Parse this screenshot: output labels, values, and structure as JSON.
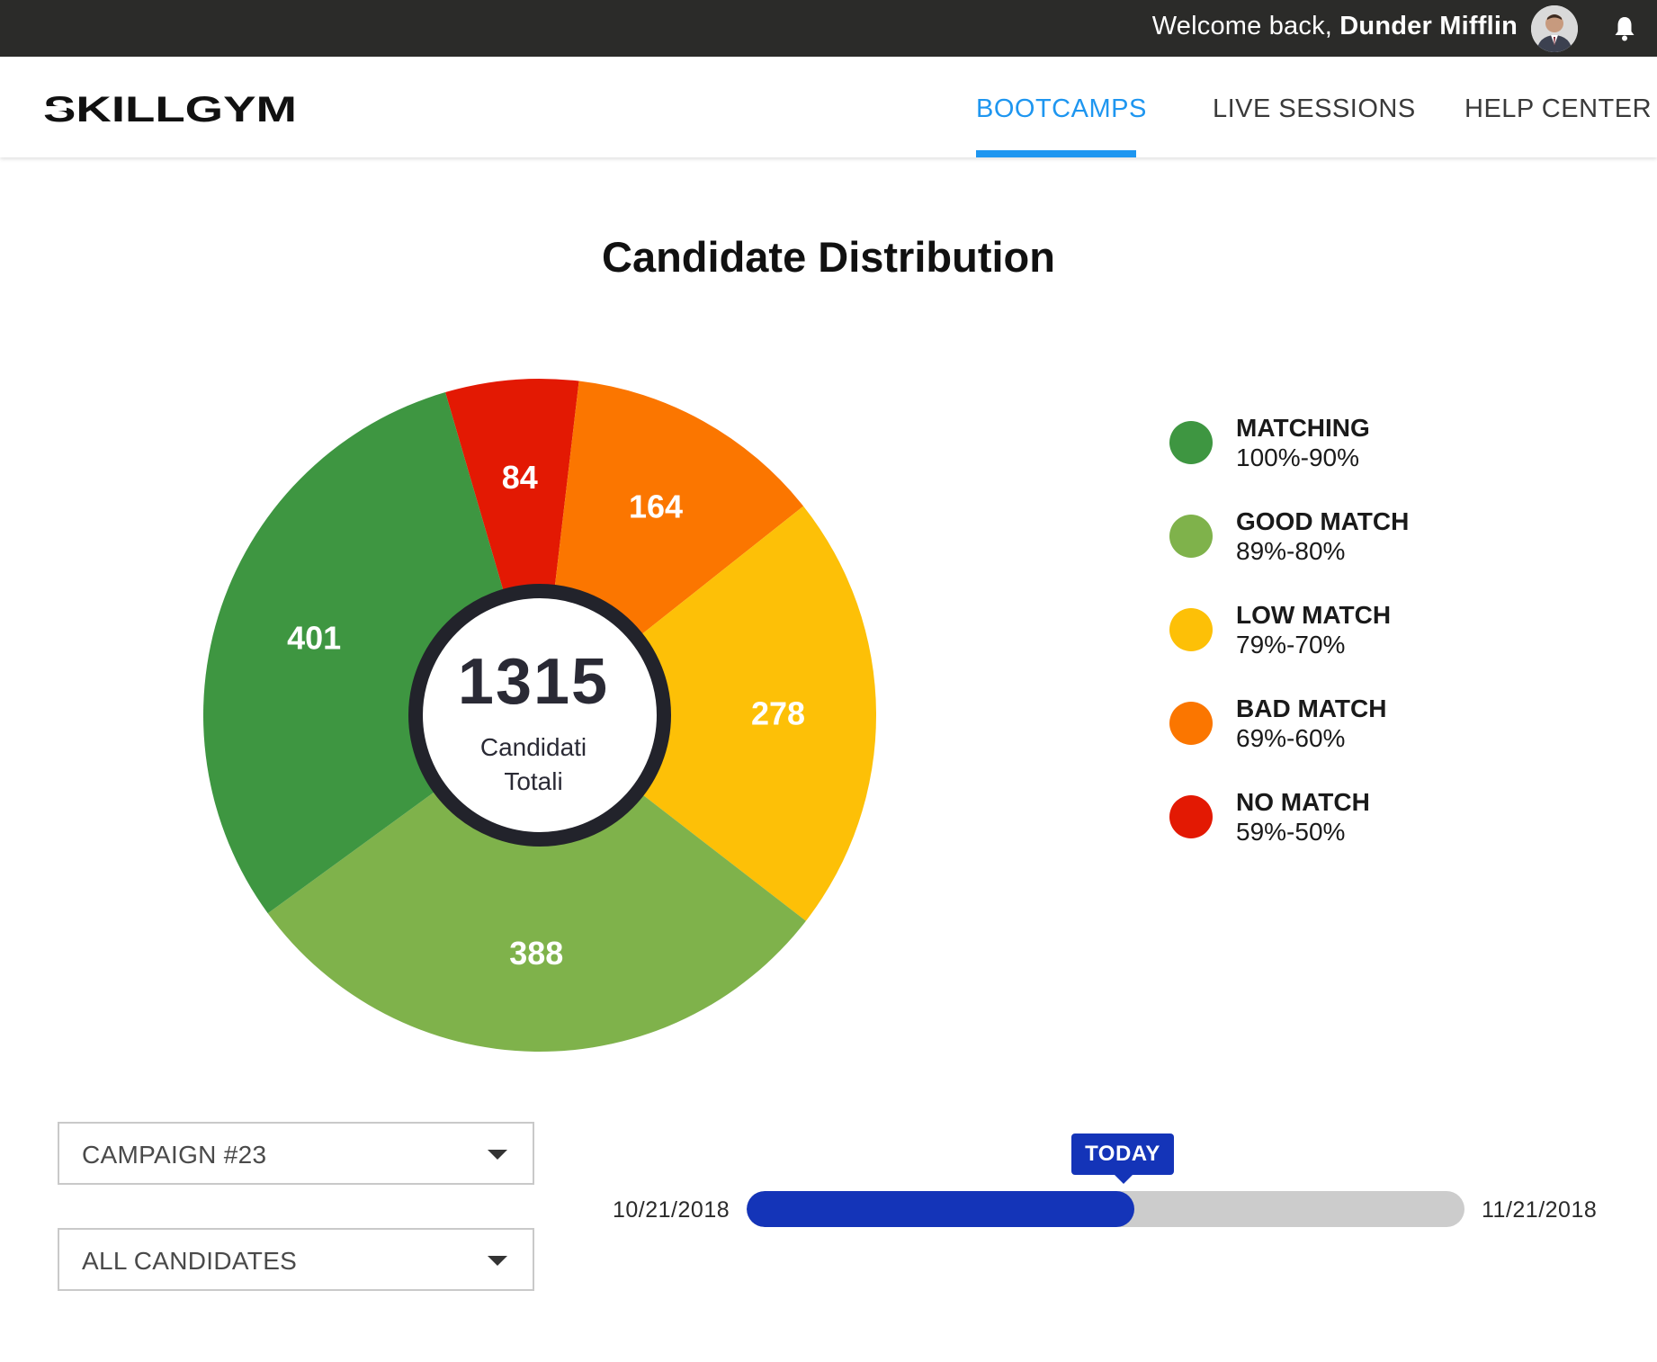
{
  "topbar": {
    "welcome_prefix": "Welcome back, ",
    "user_name": "Dunder Mifflin"
  },
  "header": {
    "logo_text": "SKILLGYM",
    "nav": [
      {
        "label": "BOOTCAMPS",
        "active": true
      },
      {
        "label": "LIVE SESSIONS",
        "active": false
      },
      {
        "label": "HELP CENTER",
        "active": false
      }
    ]
  },
  "page": {
    "title": "Candidate Distribution"
  },
  "chart_data": {
    "type": "pie",
    "title": "Candidate Distribution",
    "center_total": "1315",
    "center_label_line1": "Candidati",
    "center_label_line2": "Totali",
    "slices": [
      {
        "label": "MATCHING",
        "range": "100%-90%",
        "value": 401,
        "color": "#3e9641"
      },
      {
        "label": "GOOD MATCH",
        "range": "89%-80%",
        "value": 388,
        "color": "#7fb24b"
      },
      {
        "label": "LOW MATCH",
        "range": "79%-70%",
        "value": 278,
        "color": "#fdc007"
      },
      {
        "label": "BAD MATCH",
        "range": "69%-60%",
        "value": 164,
        "color": "#fb7600"
      },
      {
        "label": "NO MATCH",
        "range": "59%-50%",
        "value": 84,
        "color": "#e31903"
      }
    ]
  },
  "filters": {
    "campaign": "CAMPAIGN #23",
    "candidates": "ALL CANDIDATES"
  },
  "timeline": {
    "start_date": "10/21/2018",
    "end_date": "11/21/2018",
    "marker_label": "TODAY",
    "progress": 0.54
  },
  "colors": {
    "accent": "#1e96f0",
    "timeline_fill": "#1434b8",
    "topbar_bg": "#2b2b29"
  }
}
